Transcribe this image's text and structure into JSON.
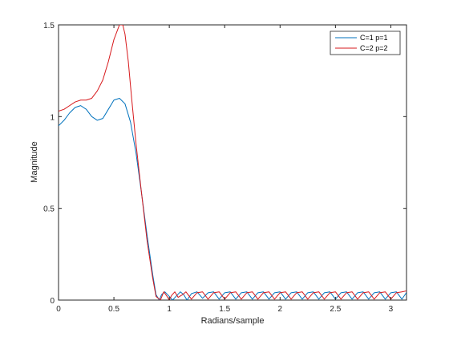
{
  "chart_data": {
    "type": "line",
    "title": "",
    "xlabel": "Radians/sample",
    "ylabel": "Magnitude",
    "xlim": [
      0,
      3.14159
    ],
    "ylim": [
      0,
      1.5
    ],
    "xticks": [
      0,
      0.5,
      1,
      1.5,
      2,
      2.5,
      3
    ],
    "xtick_labels": [
      "0",
      "0.5",
      "1",
      "1.5",
      "2",
      "2.5",
      "3"
    ],
    "yticks": [
      0,
      0.5,
      1,
      1.5
    ],
    "ytick_labels": [
      "0",
      "0.5",
      "1",
      "1.5"
    ],
    "grid": false,
    "legend_position": "top-right",
    "series": [
      {
        "name": "C=1 p=1",
        "color": "#0072BD",
        "x": [
          0,
          0.05,
          0.1,
          0.15,
          0.2,
          0.25,
          0.3,
          0.35,
          0.4,
          0.45,
          0.5,
          0.55,
          0.6,
          0.65,
          0.7,
          0.75,
          0.8,
          0.85,
          0.88,
          0.91,
          0.93,
          0.96,
          1.0,
          1.03,
          1.06,
          1.1,
          1.13,
          1.16,
          1.2,
          1.25,
          1.3,
          1.35,
          1.4,
          1.45,
          1.5,
          1.55,
          1.6,
          1.65,
          1.7,
          1.75,
          1.8,
          1.85,
          1.9,
          1.95,
          2.0,
          2.05,
          2.1,
          2.15,
          2.2,
          2.25,
          2.3,
          2.35,
          2.4,
          2.45,
          2.5,
          2.55,
          2.6,
          2.65,
          2.7,
          2.75,
          2.8,
          2.85,
          2.9,
          2.95,
          3.0,
          3.05,
          3.1,
          3.14
        ],
        "y": [
          0.95,
          0.98,
          1.02,
          1.05,
          1.06,
          1.04,
          1.0,
          0.98,
          0.99,
          1.04,
          1.09,
          1.1,
          1.07,
          0.97,
          0.8,
          0.58,
          0.35,
          0.14,
          0.03,
          0.0,
          0.03,
          0.045,
          0.02,
          0.0,
          0.02,
          0.045,
          0.03,
          0.0,
          0.035,
          0.045,
          0.01,
          0.04,
          0.045,
          0.005,
          0.04,
          0.045,
          0.005,
          0.04,
          0.045,
          0.005,
          0.04,
          0.045,
          0.005,
          0.04,
          0.045,
          0.005,
          0.04,
          0.045,
          0.005,
          0.04,
          0.045,
          0.005,
          0.04,
          0.045,
          0.005,
          0.04,
          0.045,
          0.005,
          0.04,
          0.045,
          0.005,
          0.04,
          0.045,
          0.005,
          0.04,
          0.045,
          0.005,
          0.04
        ]
      },
      {
        "name": "C=2 p=2",
        "color": "#D7191C",
        "x": [
          0,
          0.05,
          0.1,
          0.15,
          0.2,
          0.25,
          0.3,
          0.35,
          0.4,
          0.45,
          0.5,
          0.55,
          0.58,
          0.6,
          0.63,
          0.66,
          0.7,
          0.75,
          0.8,
          0.85,
          0.88,
          0.92,
          0.95,
          0.98,
          1.0,
          1.02,
          1.05,
          1.08,
          1.12,
          1.15,
          1.2,
          1.25,
          1.3,
          1.35,
          1.4,
          1.45,
          1.5,
          1.55,
          1.6,
          1.65,
          1.7,
          1.75,
          1.8,
          1.85,
          1.9,
          1.95,
          2.0,
          2.05,
          2.1,
          2.15,
          2.2,
          2.25,
          2.3,
          2.35,
          2.4,
          2.45,
          2.5,
          2.55,
          2.6,
          2.65,
          2.7,
          2.75,
          2.8,
          2.85,
          2.9,
          2.95,
          3.0,
          3.05,
          3.1,
          3.14
        ],
        "y": [
          1.03,
          1.04,
          1.06,
          1.08,
          1.09,
          1.09,
          1.1,
          1.14,
          1.2,
          1.3,
          1.42,
          1.5,
          1.5,
          1.45,
          1.3,
          1.1,
          0.85,
          0.58,
          0.32,
          0.12,
          0.02,
          0.0,
          0.045,
          0.02,
          0.0,
          0.025,
          0.045,
          0.015,
          0.03,
          0.045,
          0.005,
          0.04,
          0.045,
          0.005,
          0.04,
          0.045,
          0.005,
          0.04,
          0.045,
          0.005,
          0.04,
          0.045,
          0.005,
          0.04,
          0.045,
          0.005,
          0.04,
          0.045,
          0.005,
          0.04,
          0.045,
          0.005,
          0.04,
          0.045,
          0.005,
          0.04,
          0.045,
          0.005,
          0.04,
          0.045,
          0.005,
          0.04,
          0.045,
          0.005,
          0.04,
          0.045,
          0.005,
          0.04,
          0.045,
          0.05
        ]
      }
    ]
  }
}
